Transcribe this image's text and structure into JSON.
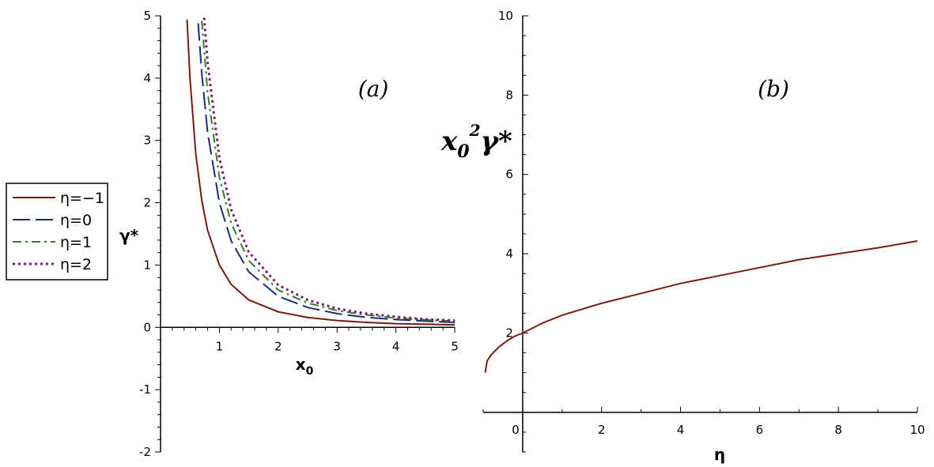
{
  "chart_data": [
    {
      "type": "line",
      "panel_label": "(a)",
      "xlabel": "x",
      "xlabel_sub": "0",
      "ylabel": "γ*",
      "xlim": [
        0,
        5
      ],
      "ylim": [
        -2,
        5
      ],
      "xticks": [
        "1",
        "2",
        "3",
        "4",
        "5"
      ],
      "yticks": [
        "-2",
        "-1",
        "0",
        "1",
        "2",
        "3",
        "4",
        "5"
      ],
      "series": [
        {
          "name": "η=−1",
          "color": "#7b1a12",
          "dash": "solid",
          "x": [
            0.45,
            0.5,
            0.6,
            0.7,
            0.8,
            1.0,
            1.2,
            1.5,
            2.0,
            2.5,
            3.0,
            3.5,
            4.0,
            4.5,
            5.0
          ],
          "y": [
            4.94,
            4.0,
            2.78,
            2.04,
            1.56,
            1.0,
            0.69,
            0.44,
            0.25,
            0.16,
            0.11,
            0.08,
            0.06,
            0.05,
            0.04
          ]
        },
        {
          "name": "η=0",
          "color": "#1f2a7a",
          "dash": "longdash",
          "x": [
            0.64,
            0.7,
            0.8,
            1.0,
            1.2,
            1.5,
            2.0,
            2.5,
            3.0,
            3.5,
            4.0,
            4.5,
            5.0
          ],
          "y": [
            4.88,
            4.08,
            3.13,
            2.0,
            1.39,
            0.89,
            0.5,
            0.32,
            0.22,
            0.16,
            0.125,
            0.1,
            0.08
          ]
        },
        {
          "name": "η=1",
          "color": "#3a7a2a",
          "dash": "dashdot",
          "x": [
            0.7,
            0.8,
            1.0,
            1.2,
            1.5,
            2.0,
            2.5,
            3.0,
            3.5,
            4.0,
            4.5,
            5.0
          ],
          "y": [
            4.92,
            3.77,
            2.41,
            1.67,
            1.07,
            0.6,
            0.39,
            0.27,
            0.2,
            0.15,
            0.12,
            0.1
          ]
        },
        {
          "name": "η=2",
          "color": "#6e2470",
          "dash": "dotted",
          "x": [
            0.74,
            0.8,
            1.0,
            1.2,
            1.5,
            2.0,
            2.5,
            3.0,
            3.5,
            4.0,
            4.5,
            5.0
          ],
          "y": [
            4.97,
            4.25,
            2.72,
            1.89,
            1.21,
            0.68,
            0.44,
            0.3,
            0.22,
            0.17,
            0.13,
            0.11
          ]
        }
      ]
    },
    {
      "type": "line",
      "panel_label": "(b)",
      "xlabel": "η",
      "ylabel": "x",
      "ylabel_sub": "0",
      "ylabel_sup": "2",
      "ylabel_tail": "γ*",
      "xlim": [
        -1,
        10
      ],
      "ylim": [
        -1,
        10
      ],
      "xticks": [
        "0",
        "2",
        "4",
        "6",
        "8",
        "10"
      ],
      "yticks": [
        "2",
        "4",
        "6",
        "8",
        "10"
      ],
      "series": [
        {
          "color": "#7b1a12",
          "dash": "solid",
          "x": [
            -0.95,
            -0.9,
            -0.8,
            -0.6,
            -0.4,
            -0.2,
            0,
            0.5,
            1,
            2,
            3,
            4,
            5,
            6,
            7,
            8,
            9,
            10
          ],
          "y": [
            1.0,
            1.3,
            1.45,
            1.65,
            1.8,
            1.92,
            2.0,
            2.25,
            2.45,
            2.75,
            3.0,
            3.25,
            3.45,
            3.65,
            3.85,
            4.0,
            4.15,
            4.32
          ]
        }
      ]
    }
  ]
}
